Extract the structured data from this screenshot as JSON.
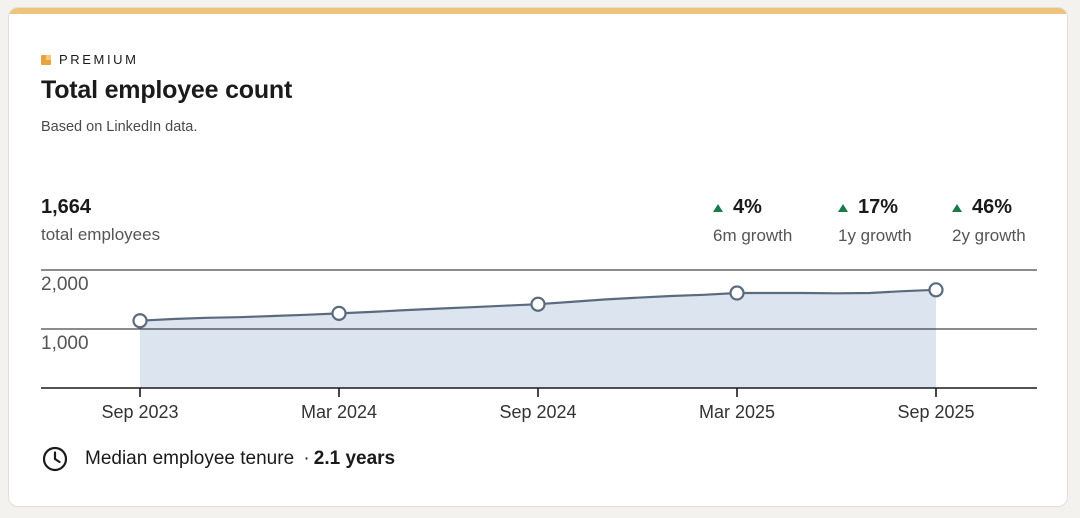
{
  "card": {
    "premium_label": "PREMIUM",
    "title": "Total employee count",
    "subtitle": "Based on LinkedIn data."
  },
  "summary": {
    "total_value": "1,664",
    "total_label": "total employees",
    "growth": [
      {
        "value": "4%",
        "label": "6m growth",
        "direction": "up"
      },
      {
        "value": "17%",
        "label": "1y growth",
        "direction": "up"
      },
      {
        "value": "46%",
        "label": "2y growth",
        "direction": "up"
      }
    ]
  },
  "tenure": {
    "label": "Median employee tenure",
    "separator": "·",
    "value": "2.1 years"
  },
  "colors": {
    "accent_bar": "#f0c37a",
    "growth_up": "#1b7a4c",
    "line": "#5b6b7d",
    "fill": "#dce5ef"
  },
  "chart_data": {
    "type": "area",
    "x": [
      "2023-09",
      "2023-10",
      "2023-11",
      "2023-12",
      "2024-01",
      "2024-02",
      "2024-03",
      "2024-04",
      "2024-05",
      "2024-06",
      "2024-07",
      "2024-08",
      "2024-09",
      "2024-10",
      "2024-11",
      "2024-12",
      "2025-01",
      "2025-02",
      "2025-03",
      "2025-04",
      "2025-05",
      "2025-06",
      "2025-07",
      "2025-08",
      "2025-09"
    ],
    "values": [
      1140,
      1170,
      1190,
      1200,
      1220,
      1240,
      1265,
      1290,
      1320,
      1345,
      1370,
      1395,
      1420,
      1460,
      1500,
      1530,
      1560,
      1580,
      1610,
      1610,
      1610,
      1605,
      1610,
      1640,
      1664
    ],
    "markers": [
      "2023-09",
      "2024-03",
      "2024-09",
      "2025-03",
      "2025-09"
    ],
    "xticks": [
      "Sep 2023",
      "Mar 2024",
      "Sep 2024",
      "Mar 2025",
      "Sep 2025"
    ],
    "yticks": [
      "1,000",
      "2,000"
    ],
    "ylim": [
      0,
      2000
    ],
    "grid": true
  }
}
